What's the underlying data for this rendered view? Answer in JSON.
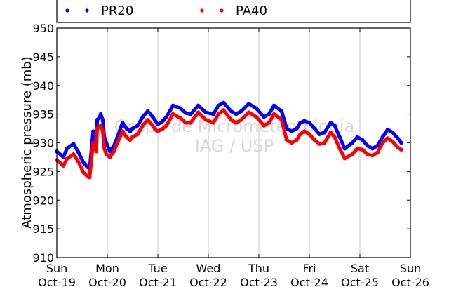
{
  "chart_data": {
    "type": "scatter",
    "ylabel": "Atmospheric pressure (mb)",
    "ylim": [
      910,
      950
    ],
    "yticks": [
      910,
      915,
      920,
      925,
      930,
      935,
      940,
      945,
      950
    ],
    "xlim": [
      0,
      7
    ],
    "xticks": [
      {
        "day": 0,
        "weekday": "Sun",
        "date": "Oct-19"
      },
      {
        "day": 1,
        "weekday": "Mon",
        "date": "Oct-20"
      },
      {
        "day": 2,
        "weekday": "Tue",
        "date": "Oct-21"
      },
      {
        "day": 3,
        "weekday": "Wed",
        "date": "Oct-22"
      },
      {
        "day": 4,
        "weekday": "Thu",
        "date": "Oct-23"
      },
      {
        "day": 5,
        "weekday": "Fri",
        "date": "Oct-24"
      },
      {
        "day": 6,
        "weekday": "Sat",
        "date": "Oct-25"
      },
      {
        "day": 7,
        "weekday": "Sun",
        "date": "Oct-26"
      }
    ],
    "grid": "vertical",
    "legend": "top",
    "watermark": [
      "Grupo de Micrometeorologia",
      "IAG / USP"
    ],
    "series": [
      {
        "name": "PR20",
        "color": "#0000ff",
        "x": [
          0.0,
          0.13,
          0.2,
          0.33,
          0.42,
          0.53,
          0.6,
          0.65,
          0.72,
          0.78,
          0.8,
          0.85,
          0.87,
          0.91,
          0.94,
          0.98,
          1.05,
          1.13,
          1.2,
          1.3,
          1.38,
          1.45,
          1.5,
          1.6,
          1.7,
          1.8,
          1.9,
          1.95,
          2.0,
          2.1,
          2.17,
          2.3,
          2.45,
          2.55,
          2.65,
          2.8,
          2.95,
          3.1,
          3.2,
          3.3,
          3.45,
          3.55,
          3.65,
          3.8,
          3.95,
          4.1,
          4.2,
          4.3,
          4.45,
          4.55,
          4.65,
          4.75,
          4.82,
          4.9,
          5.0,
          5.1,
          5.2,
          5.3,
          5.42,
          5.5,
          5.6,
          5.7,
          5.85,
          5.95,
          6.05,
          6.15,
          6.25,
          6.35,
          6.45,
          6.55,
          6.65,
          6.75,
          6.82
        ],
        "y": [
          928.5,
          927.5,
          929.0,
          929.8,
          928.5,
          926.5,
          925.8,
          925.5,
          932.0,
          930.0,
          934.0,
          934.5,
          935.0,
          934.0,
          931.0,
          930.0,
          928.5,
          929.5,
          931.0,
          933.5,
          932.5,
          932.0,
          932.5,
          933.0,
          934.5,
          935.5,
          934.5,
          933.8,
          933.2,
          933.8,
          934.5,
          936.5,
          936.0,
          935.2,
          935.0,
          936.5,
          935.3,
          935.0,
          936.5,
          937.0,
          935.5,
          935.0,
          935.5,
          936.8,
          936.0,
          934.5,
          935.0,
          936.5,
          935.5,
          932.5,
          932.0,
          932.5,
          933.5,
          933.8,
          933.5,
          932.5,
          931.5,
          931.8,
          933.5,
          933.0,
          931.0,
          929.0,
          930.0,
          931.0,
          930.5,
          929.5,
          929.0,
          929.5,
          931.0,
          932.3,
          931.8,
          930.8,
          930.0
        ]
      },
      {
        "name": "PA40",
        "color": "#ff0000",
        "x": [
          0.0,
          0.13,
          0.2,
          0.33,
          0.42,
          0.53,
          0.6,
          0.65,
          0.72,
          0.78,
          0.8,
          0.85,
          0.87,
          0.91,
          0.94,
          0.98,
          1.05,
          1.13,
          1.2,
          1.3,
          1.38,
          1.45,
          1.5,
          1.6,
          1.7,
          1.8,
          1.9,
          1.95,
          2.0,
          2.1,
          2.17,
          2.3,
          2.45,
          2.55,
          2.65,
          2.8,
          2.95,
          3.1,
          3.2,
          3.3,
          3.45,
          3.55,
          3.65,
          3.8,
          3.95,
          4.1,
          4.2,
          4.3,
          4.45,
          4.55,
          4.65,
          4.75,
          4.82,
          4.9,
          5.0,
          5.1,
          5.2,
          5.3,
          5.42,
          5.5,
          5.6,
          5.7,
          5.85,
          5.95,
          6.05,
          6.15,
          6.25,
          6.35,
          6.45,
          6.55,
          6.65,
          6.75,
          6.82
        ],
        "y": [
          927.0,
          926.0,
          927.2,
          928.0,
          926.8,
          924.8,
          924.2,
          924.0,
          930.0,
          928.5,
          932.5,
          932.8,
          933.0,
          932.0,
          929.0,
          928.0,
          927.5,
          928.5,
          930.0,
          932.0,
          931.0,
          930.5,
          931.0,
          931.5,
          933.0,
          934.0,
          933.0,
          932.3,
          932.0,
          932.5,
          933.0,
          935.0,
          934.3,
          933.5,
          933.5,
          935.3,
          934.0,
          933.5,
          935.0,
          935.7,
          934.0,
          933.5,
          934.0,
          935.3,
          934.5,
          933.0,
          933.5,
          935.0,
          934.0,
          930.5,
          930.0,
          930.5,
          931.5,
          932.0,
          931.5,
          930.5,
          929.8,
          930.0,
          931.8,
          931.0,
          929.0,
          927.3,
          928.0,
          929.0,
          928.8,
          928.0,
          927.8,
          928.3,
          930.0,
          930.8,
          930.2,
          929.2,
          928.8
        ]
      }
    ]
  }
}
